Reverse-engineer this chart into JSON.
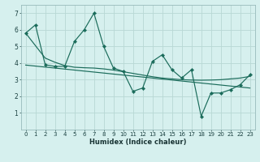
{
  "xlabel": "Humidex (Indice chaleur)",
  "bg_color": "#d6f0ee",
  "line_color": "#1a6b5a",
  "grid_color": "#b8d8d4",
  "x": [
    0,
    1,
    2,
    3,
    4,
    5,
    6,
    7,
    8,
    9,
    10,
    11,
    12,
    13,
    14,
    15,
    16,
    17,
    18,
    19,
    20,
    21,
    22,
    23
  ],
  "y_main": [
    5.8,
    6.3,
    3.9,
    3.8,
    3.8,
    5.3,
    6.0,
    7.0,
    5.0,
    3.7,
    3.5,
    2.3,
    2.5,
    4.1,
    4.5,
    3.6,
    3.1,
    3.6,
    0.8,
    2.2,
    2.2,
    2.4,
    2.7,
    3.3
  ],
  "y_reg1": [
    5.8,
    5.05,
    4.3,
    4.05,
    3.85,
    3.75,
    3.72,
    3.7,
    3.65,
    3.58,
    3.48,
    3.38,
    3.28,
    3.18,
    3.1,
    3.05,
    3.0,
    2.98,
    2.97,
    2.98,
    3.0,
    3.05,
    3.1,
    3.2
  ],
  "y_reg2": [
    3.88,
    3.82,
    3.76,
    3.7,
    3.64,
    3.58,
    3.52,
    3.46,
    3.4,
    3.34,
    3.28,
    3.22,
    3.16,
    3.1,
    3.04,
    2.98,
    2.92,
    2.86,
    2.8,
    2.74,
    2.68,
    2.62,
    2.56,
    2.5
  ],
  "xlim": [
    -0.5,
    23.5
  ],
  "ylim": [
    0,
    7.5
  ],
  "yticks": [
    1,
    2,
    3,
    4,
    5,
    6,
    7
  ],
  "xticks": [
    0,
    1,
    2,
    3,
    4,
    5,
    6,
    7,
    8,
    9,
    10,
    11,
    12,
    13,
    14,
    15,
    16,
    17,
    18,
    19,
    20,
    21,
    22,
    23
  ],
  "tick_fontsize": 5.0,
  "xlabel_fontsize": 6.0,
  "marker_size": 2.2,
  "linewidth": 0.85
}
